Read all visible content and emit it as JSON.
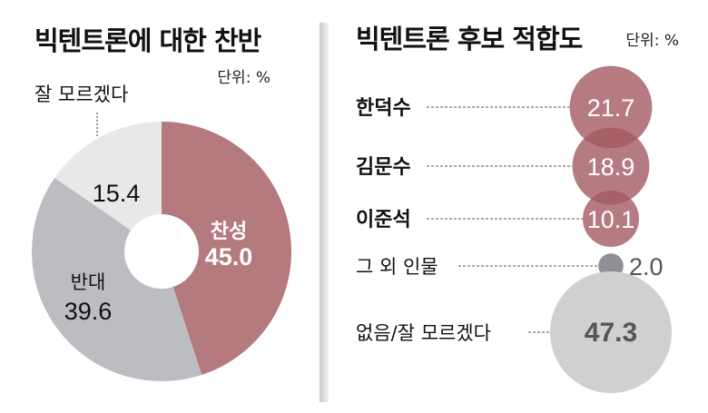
{
  "chart_data": [
    {
      "type": "pie",
      "title": "빅텐트론에 대한 찬반",
      "unit": "단위: %",
      "slices": [
        {
          "label": "찬성",
          "value": 45.0,
          "display": "45.0",
          "color": "#b47a7e"
        },
        {
          "label": "반대",
          "value": 39.6,
          "display": "39.6",
          "color": "#bcbdc1"
        },
        {
          "label": "잘 모르겠다",
          "value": 15.4,
          "display": "15.4",
          "color": "#e8e8e9"
        }
      ]
    },
    {
      "type": "scatter",
      "subtype": "bubble",
      "title": "빅텐트론 후보 적합도",
      "unit": "단위: %",
      "items": [
        {
          "label": "한덕수",
          "value": 21.7,
          "display": "21.7",
          "color": "#a45a61"
        },
        {
          "label": "김문수",
          "value": 18.9,
          "display": "18.9",
          "color": "#a45a61"
        },
        {
          "label": "이준석",
          "value": 10.1,
          "display": "10.1",
          "color": "#a45a61"
        },
        {
          "label": "그 외 인물",
          "value": 2.0,
          "display": "2.0",
          "color": "#8e9095"
        },
        {
          "label": "없음/잘 모르겠다",
          "value": 47.3,
          "display": "47.3",
          "color": "#cfd0d2"
        }
      ]
    }
  ]
}
